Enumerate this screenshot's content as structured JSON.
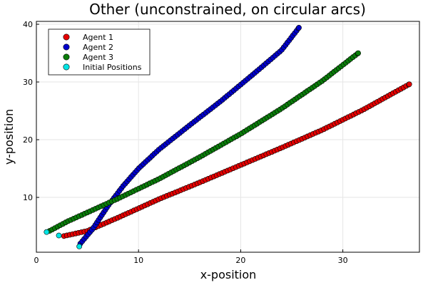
{
  "chart_data": {
    "type": "scatter",
    "title": "Other (unconstrained, on circular arcs)",
    "xlabel": "x-position",
    "ylabel": "y-position",
    "xlim": [
      0,
      37.5
    ],
    "ylim": [
      0.5,
      40.5
    ],
    "xticks": [
      0,
      10,
      20,
      30
    ],
    "yticks": [
      10,
      20,
      30,
      40
    ],
    "grid": true,
    "legend_position": "top-left",
    "series": [
      {
        "name": "Agent 1",
        "color": "#e60000",
        "path": [
          [
            2.7,
            3.3
          ],
          [
            5,
            4.2
          ],
          [
            8,
            6.5
          ],
          [
            12,
            9.7
          ],
          [
            16,
            12.6
          ],
          [
            20,
            15.6
          ],
          [
            24,
            18.6
          ],
          [
            28,
            21.7
          ],
          [
            32,
            25.2
          ],
          [
            36.5,
            29.6
          ]
        ]
      },
      {
        "name": "Agent 2",
        "color": "#0000cc",
        "path": [
          [
            4.3,
            2
          ],
          [
            5.5,
            4.5
          ],
          [
            7,
            8.5
          ],
          [
            8.5,
            12
          ],
          [
            10,
            15
          ],
          [
            12,
            18.3
          ],
          [
            15,
            22.5
          ],
          [
            18,
            26.6
          ],
          [
            21,
            31
          ],
          [
            24,
            35.5
          ],
          [
            25.7,
            39.4
          ]
        ]
      },
      {
        "name": "Agent 3",
        "color": "#0a7d0a",
        "path": [
          [
            1.3,
            4.2
          ],
          [
            3,
            5.8
          ],
          [
            5,
            7.4
          ],
          [
            8,
            9.8
          ],
          [
            12,
            13.2
          ],
          [
            16,
            17
          ],
          [
            20,
            21
          ],
          [
            24,
            25.4
          ],
          [
            28,
            30.2
          ],
          [
            31.5,
            35
          ]
        ]
      }
    ],
    "initial_positions": {
      "name": "Initial Positions",
      "color": "#00e5e5",
      "points": [
        [
          1,
          4
        ],
        [
          2.2,
          3.4
        ],
        [
          4.2,
          1.5
        ]
      ]
    }
  }
}
